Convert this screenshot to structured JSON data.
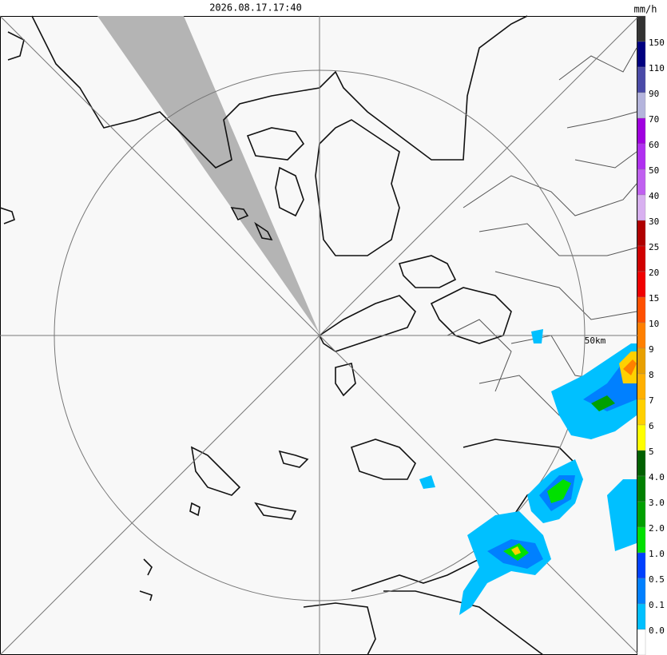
{
  "header": {
    "timestamp": "2026.08.17.17:40",
    "unit": "mm/h"
  },
  "map": {
    "range_label": "50km"
  },
  "legend": {
    "colors": [
      "#333333",
      "#000080",
      "#4a4aa8",
      "#b4b4dc",
      "#a000e0",
      "#b030f0",
      "#c060f0",
      "#d8b0f0",
      "#b00000",
      "#d00000",
      "#f00000",
      "#ff5000",
      "#ff8000",
      "#e8a000",
      "#ffb000",
      "#ffd000",
      "#ffff00",
      "#006000",
      "#008000",
      "#00a000",
      "#00e000",
      "#0040ff",
      "#0080ff",
      "#00c0ff",
      "#ffffff"
    ],
    "labels": [
      "150",
      "110",
      "90",
      "70",
      "60",
      "50",
      "40",
      "30",
      "25",
      "20",
      "15",
      "10",
      "9",
      "8",
      "7",
      "6",
      "5",
      "4.0",
      "3.0",
      "2.0",
      "1.0",
      "0.5",
      "0.1",
      "0.0"
    ]
  }
}
